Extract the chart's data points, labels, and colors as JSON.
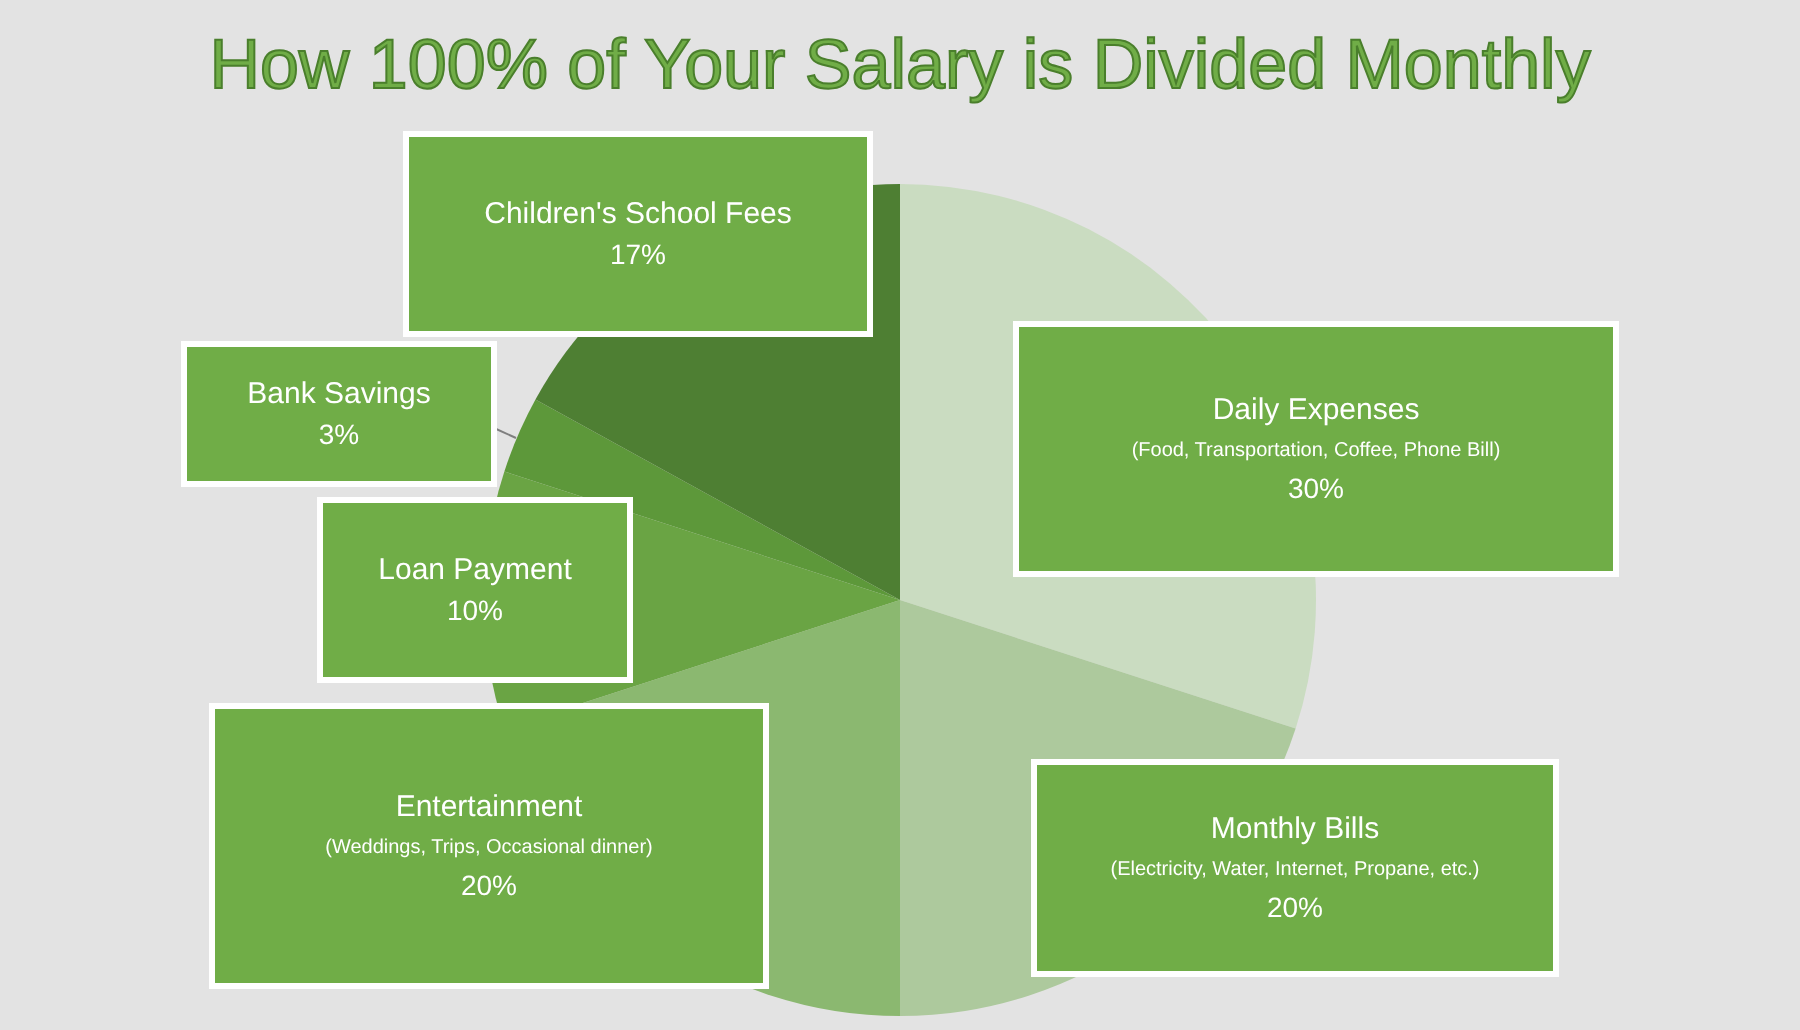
{
  "chart_data": {
    "type": "pie",
    "title": "How 100% of Your Salary is Divided Monthly",
    "categories": [
      "Daily Expenses\n(Food, Transportation, Coffee, Phone Bill)",
      "Monthly Bills\n(Electricity, Water, Internet, Propane, etc.)",
      "Entertainment\n(Weddings, Trips, Occasional dinner)",
      "Loan Payment",
      "Bank Savings",
      "Children's School Fees"
    ],
    "values": [
      30,
      20,
      20,
      10,
      3,
      17
    ],
    "colors": [
      "#cadcc1",
      "#adc99d",
      "#8bb870",
      "#6aa444",
      "#5d983a",
      "#4e7f33"
    ],
    "value_labels": [
      "30%",
      "20%",
      "20%",
      "10%",
      "3%",
      "17%"
    ]
  }
}
